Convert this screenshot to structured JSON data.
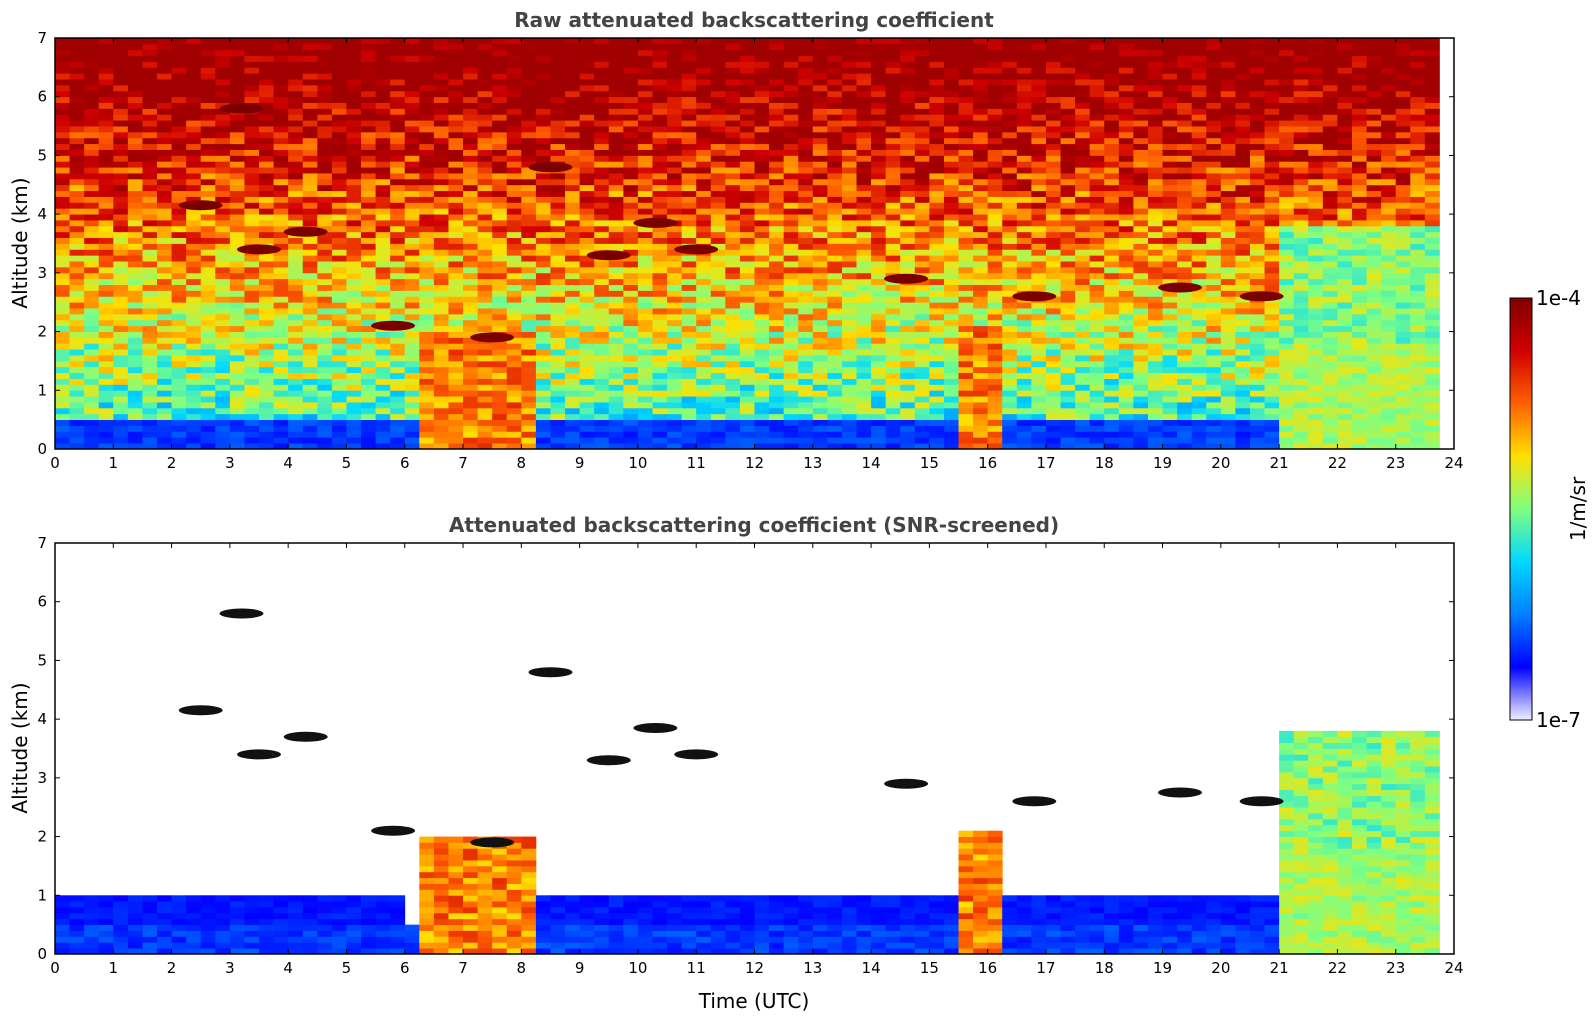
{
  "chart_data": [
    {
      "type": "heatmap",
      "title": "Raw attenuated backscattering coefficient",
      "xlabel": "",
      "ylabel": "Altitude (km)",
      "xlim": [
        0,
        24
      ],
      "ylim": [
        0,
        7
      ],
      "xticks": [
        "0",
        "1",
        "2",
        "3",
        "4",
        "5",
        "6",
        "7",
        "8",
        "9",
        "10",
        "11",
        "12",
        "13",
        "14",
        "15",
        "16",
        "17",
        "18",
        "19",
        "20",
        "21",
        "22",
        "23",
        "24"
      ],
      "yticks": [
        "0",
        "1",
        "2",
        "3",
        "4",
        "5",
        "6",
        "7"
      ],
      "features": [
        {
          "kind": "boundary-layer",
          "t0": 0,
          "t1": 21.0,
          "h": 0.55
        },
        {
          "kind": "precip",
          "t0": 6.2,
          "t1": 8.25,
          "h": 2.0
        },
        {
          "kind": "precip",
          "t0": 15.6,
          "t1": 16.35,
          "h": 2.1
        },
        {
          "kind": "mixed-layer",
          "t0": 21.1,
          "t1": 23.8,
          "h": 3.8
        },
        {
          "kind": "cloud",
          "t": 2.5,
          "h": 4.15
        },
        {
          "kind": "cloud",
          "t": 3.2,
          "h": 5.8
        },
        {
          "kind": "cloud",
          "t": 3.5,
          "h": 3.4
        },
        {
          "kind": "cloud",
          "t": 4.3,
          "h": 3.7
        },
        {
          "kind": "cloud",
          "t": 5.8,
          "h": 2.1
        },
        {
          "kind": "cloud",
          "t": 7.5,
          "h": 1.9
        },
        {
          "kind": "cloud",
          "t": 8.5,
          "h": 4.8
        },
        {
          "kind": "cloud",
          "t": 9.5,
          "h": 3.3
        },
        {
          "kind": "cloud",
          "t": 10.3,
          "h": 3.85
        },
        {
          "kind": "cloud",
          "t": 11.0,
          "h": 3.4
        },
        {
          "kind": "cloud",
          "t": 14.6,
          "h": 2.9
        },
        {
          "kind": "cloud",
          "t": 16.8,
          "h": 2.6
        },
        {
          "kind": "cloud",
          "t": 19.3,
          "h": 2.75
        },
        {
          "kind": "cloud",
          "t": 20.7,
          "h": 2.6
        }
      ]
    },
    {
      "type": "heatmap",
      "title": "Attenuated backscattering coefficient (SNR-screened)",
      "xlabel": "Time (UTC)",
      "ylabel": "Altitude (km)",
      "xlim": [
        0,
        24
      ],
      "ylim": [
        0,
        7
      ],
      "xticks": [
        "0",
        "1",
        "2",
        "3",
        "4",
        "5",
        "6",
        "7",
        "8",
        "9",
        "10",
        "11",
        "12",
        "13",
        "14",
        "15",
        "16",
        "17",
        "18",
        "19",
        "20",
        "21",
        "22",
        "23",
        "24"
      ],
      "yticks": [
        "0",
        "1",
        "2",
        "3",
        "4",
        "5",
        "6",
        "7"
      ]
    }
  ],
  "colorbar": {
    "label": "1/m/sr",
    "max_label": "1e-4",
    "min_label": "1e-7",
    "scale": "log",
    "colormap": [
      "#f0f0ff",
      "#0000ff",
      "#0080ff",
      "#00d8ff",
      "#80ff80",
      "#ffe000",
      "#ff6000",
      "#d00000",
      "#800000"
    ]
  },
  "colors": {
    "title": "#444444",
    "cloud": "#7a0000",
    "cloud_top": "#111111"
  }
}
